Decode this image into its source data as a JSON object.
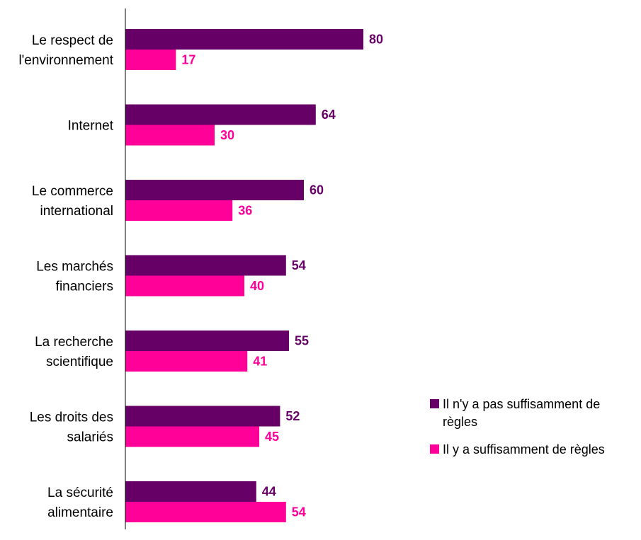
{
  "chart_data": {
    "type": "bar",
    "orientation": "horizontal",
    "categories": [
      [
        "Le respect de",
        "l'environnement"
      ],
      [
        "Internet"
      ],
      [
        "Le commerce",
        "international"
      ],
      [
        "Les marchés",
        "financiers"
      ],
      [
        "La recherche",
        "scientifique"
      ],
      [
        "Les droits des",
        "salariés"
      ],
      [
        "La sécurité",
        "alimentaire"
      ]
    ],
    "series": [
      {
        "name": "Il n'y a pas suffisamment de règles",
        "legend_lines": [
          "Il n'y a pas suffisamment de",
          "règles"
        ],
        "color": "#660066",
        "values": [
          80,
          64,
          60,
          54,
          55,
          52,
          44
        ]
      },
      {
        "name": "Il y a suffisamment de règles",
        "legend_lines": [
          "Il y a suffisamment de règles"
        ],
        "color": "#ff0099",
        "values": [
          17,
          30,
          36,
          40,
          41,
          45,
          54
        ]
      }
    ],
    "xlim": [
      0,
      100
    ],
    "grid": false,
    "legend_position": "right"
  }
}
